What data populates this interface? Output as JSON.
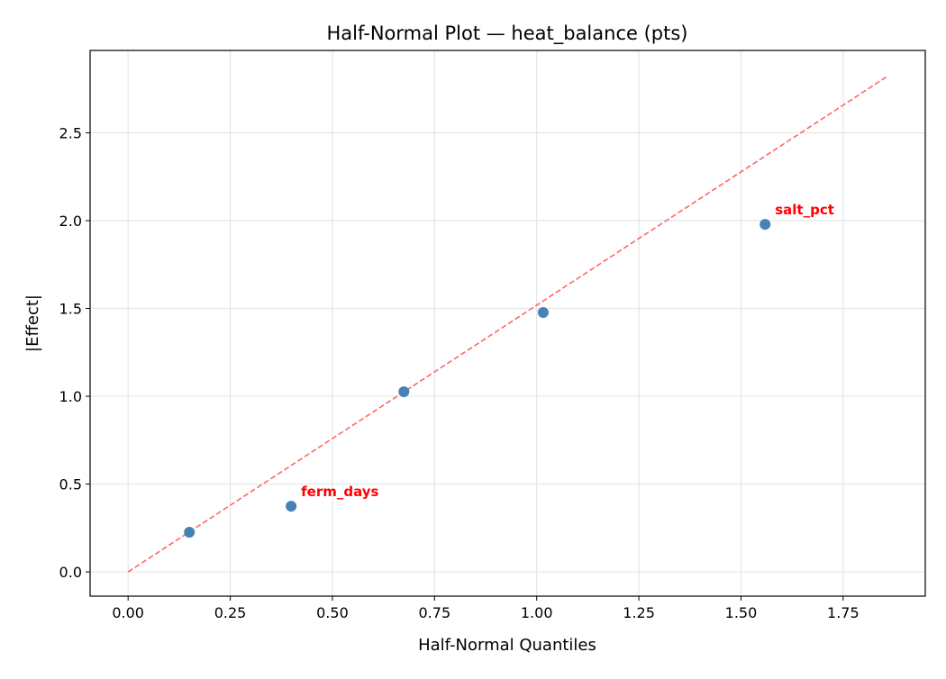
{
  "chart_data": {
    "type": "scatter",
    "title": "Half-Normal Plot — heat_balance (pts)",
    "xlabel": "Half-Normal Quantiles",
    "ylabel": "|Effect|",
    "xlim": [
      -0.093,
      1.951
    ],
    "ylim": [
      -0.138,
      2.969
    ],
    "xticks": [
      0.0,
      0.25,
      0.5,
      0.75,
      1.0,
      1.25,
      1.5,
      1.75
    ],
    "xtick_labels": [
      "0.00",
      "0.25",
      "0.50",
      "0.75",
      "1.00",
      "1.25",
      "1.50",
      "1.75"
    ],
    "yticks": [
      0.0,
      0.5,
      1.0,
      1.5,
      2.0,
      2.5
    ],
    "ytick_labels": [
      "0.0",
      "0.5",
      "1.0",
      "1.5",
      "2.0",
      "2.5"
    ],
    "grid": true,
    "points": [
      {
        "x": 0.15,
        "y": 0.226,
        "label": ""
      },
      {
        "x": 0.399,
        "y": 0.374,
        "label": "ferm_days"
      },
      {
        "x": 0.675,
        "y": 1.026,
        "label": ""
      },
      {
        "x": 1.016,
        "y": 1.477,
        "label": ""
      },
      {
        "x": 1.559,
        "y": 1.979,
        "label": "salt_pct"
      }
    ],
    "reference_line": {
      "x": [
        0.0,
        1.861
      ],
      "y": [
        0.0,
        2.826
      ],
      "style": "dashed"
    },
    "colors": {
      "points": "#4682b4",
      "line": "#ff6666",
      "labels": "#ff0000",
      "grid": "#e5e5e5"
    }
  }
}
